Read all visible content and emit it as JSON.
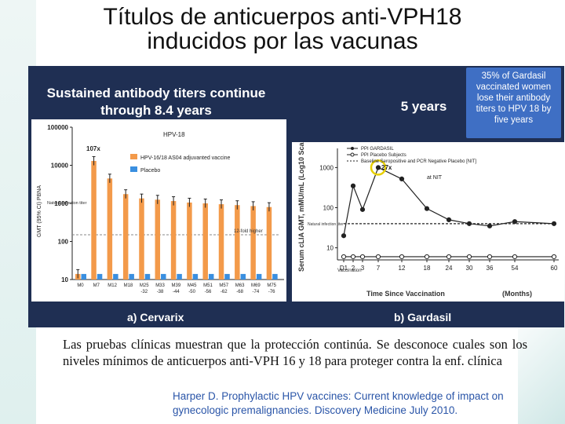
{
  "slide": {
    "title_line1": "Títulos de anticuerpos anti-VPH18",
    "title_line2": "inducidos por las vacunas",
    "panel_heading_line1": "Sustained antibody titers continue",
    "panel_heading_line2": "through 8.4 years",
    "five_years_label": "5 years",
    "callout_lines": [
      "35% of Gardasil",
      "vaccinated women",
      "lose their antibody",
      "titers to HPV 18 by",
      "five years"
    ],
    "sub_a": "a) Cervarix",
    "sub_b": "b) Gardasil",
    "caption": "Las pruebas clínicas muestran que la protección continúa. Se desconoce cuales son los niveles mínimos de anticuerpos anti-VPH 16 y 18 para proteger contra la enf. clínica",
    "citation": "Harper D. Prophylactic HPV vaccines: Current knowledge of impact on gynecologic premalignancies. Discovery Medicine July 2010."
  },
  "colors": {
    "panel_bg": "#1f2f53",
    "cervarix_bar": "#f39a4a",
    "placebo_bar": "#3a8fe0",
    "callout_bg": "#3f6fc4",
    "highlight_circle": "#e8d000"
  },
  "chart_data": [
    {
      "type": "bar",
      "title": "HPV-18",
      "ylabel": "GMT (95% CI) PBNA",
      "log_scale": true,
      "ylim": [
        10,
        100000
      ],
      "yticks": [
        "100000",
        "10000",
        "1000",
        "100",
        "10"
      ],
      "categories": [
        "M0",
        "M7",
        "M12",
        "M18",
        "M25-32",
        "M33-38",
        "M39-44",
        "M45-50",
        "M51-56",
        "M57-62",
        "M63-68",
        "M69-74",
        "M75-76"
      ],
      "series": [
        {
          "name": "HPV-16/18 AS04 adjuvanted vaccine",
          "values": [
            14,
            13000,
            4500,
            1750,
            1350,
            1250,
            1150,
            1050,
            1000,
            950,
            900,
            850,
            800
          ]
        },
        {
          "name": "Placebo",
          "values": [
            14,
            14,
            14,
            14,
            14,
            14,
            14,
            14,
            14,
            14,
            14,
            14,
            14
          ]
        }
      ],
      "annotations": [
        "107x",
        "Natural infection titer",
        "12-fold higher"
      ]
    },
    {
      "type": "line",
      "ylabel": "Serum cLIA GMT, mMU/mL (Log10 Scale)",
      "xlabel": "Time Since Vaccination",
      "xunit": "(Months)",
      "log_scale": true,
      "ylim": [
        5,
        3000
      ],
      "yticks": [
        "1000",
        "100",
        "10"
      ],
      "x_ticks": [
        "D1",
        "2",
        "3",
        "7",
        "12",
        "18",
        "24",
        "30",
        "36",
        "54",
        "60"
      ],
      "x_values": [
        1,
        2,
        3,
        7,
        12,
        18,
        24,
        30,
        36,
        54,
        60
      ],
      "series": [
        {
          "name": "PPI GARDASIL",
          "x": [
            1,
            2,
            3,
            7,
            12,
            18,
            24,
            30,
            36,
            54,
            60
          ],
          "values": [
            20,
            350,
            90,
            1000,
            520,
            95,
            50,
            40,
            35,
            45,
            40
          ]
        },
        {
          "name": "PPI Placebo Subjects",
          "x": [
            1,
            2,
            3,
            7,
            12,
            18,
            24,
            30,
            36,
            54,
            60
          ],
          "values": [
            6,
            6,
            6,
            6,
            6,
            6,
            6,
            6,
            6,
            6,
            6
          ]
        },
        {
          "name": "Baseline Seropositive and PCR Negative Placebo [NIT]",
          "x": [
            1,
            3,
            7,
            12,
            18,
            24,
            30,
            36,
            54,
            60
          ],
          "values": [
            40,
            40,
            40,
            40,
            40,
            40,
            40,
            40,
            40,
            40
          ]
        }
      ],
      "annotations": [
        "27x",
        "at NIT",
        "Vaccination",
        "Natural infection titer"
      ]
    }
  ]
}
